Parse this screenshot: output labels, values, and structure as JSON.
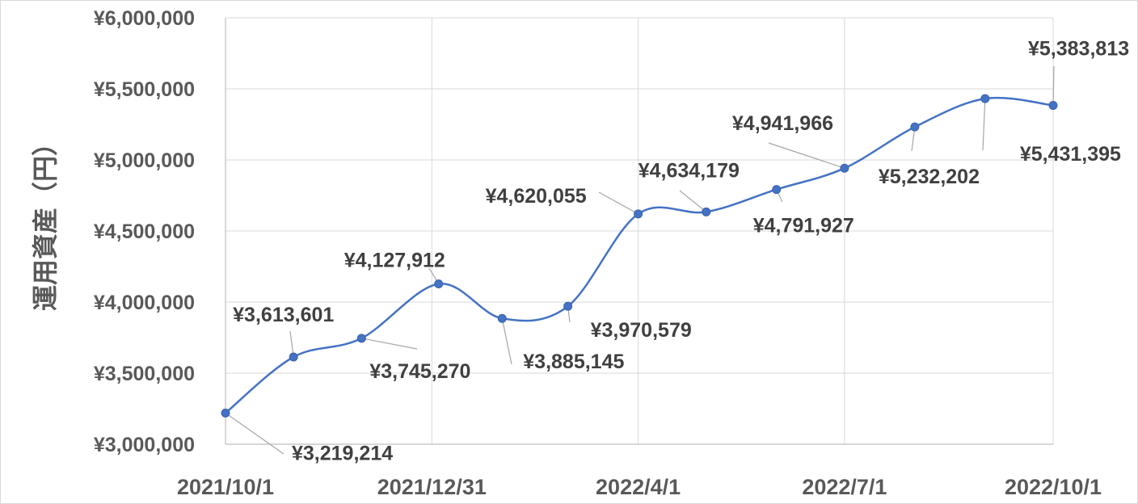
{
  "chart_data": {
    "type": "line",
    "title": "",
    "xlabel": "",
    "ylabel": "運用資産（円）",
    "ylim": [
      3000000,
      6000000
    ],
    "yticks": [
      "¥3,000,000",
      "¥3,500,000",
      "¥4,000,000",
      "¥4,500,000",
      "¥5,000,000",
      "¥5,500,000",
      "¥6,000,000"
    ],
    "xticks": [
      "2021/10/1",
      "2021/12/31",
      "2022/4/1",
      "2022/7/1",
      "2022/10/1"
    ],
    "xlim": [
      "2021/10/1",
      "2022/10/1"
    ],
    "grid": true,
    "smooth": true,
    "line_color": "#4472C4",
    "series": [
      {
        "x": [
          "2021/10/1",
          "2021/10/31",
          "2021/11/30",
          "2022/1/3",
          "2022/1/31",
          "2022/3/1",
          "2022/4/1",
          "2022/5/1",
          "2022/6/1",
          "2022/7/1",
          "2022/8/1",
          "2022/9/1",
          "2022/10/1"
        ],
        "values": [
          3219214,
          3613601,
          3745270,
          4127912,
          3885145,
          3970579,
          4620055,
          4634179,
          4791927,
          4941966,
          5232202,
          5431395,
          5383813
        ],
        "labels": [
          "¥3,219,214",
          "¥3,613,601",
          "¥3,745,270",
          "¥4,127,912",
          "¥3,885,145",
          "¥3,970,579",
          "¥4,620,055",
          "¥4,634,179",
          "¥4,791,927",
          "¥4,941,966",
          "¥5,232,202",
          "¥5,431,395",
          "¥5,383,813"
        ]
      }
    ]
  }
}
